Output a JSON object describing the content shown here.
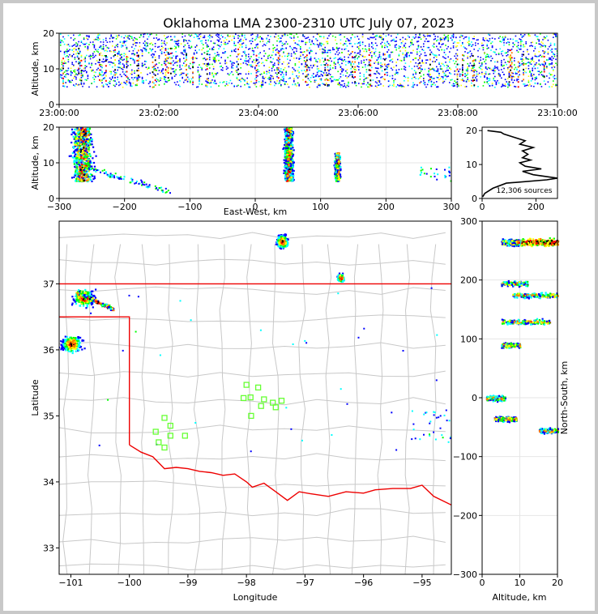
{
  "chart_data": [
    {
      "type": "heatmap",
      "panel": "time-altitude",
      "title": "Oklahoma LMA 2300-2310 UTC July 07, 2023",
      "xlabel": "",
      "ylabel": "Altitude, km",
      "x_ticks": [
        "23:00:00",
        "23:02:00",
        "23:04:00",
        "23:06:00",
        "23:08:00",
        "23:10:00"
      ],
      "y_ticks": [
        0,
        10,
        20
      ],
      "ylim": [
        0,
        20
      ],
      "activity_band_km": [
        5,
        20
      ]
    },
    {
      "type": "heatmap",
      "panel": "east-west-altitude",
      "xlabel": "East-West, km",
      "ylabel": "Altitude, km",
      "xlim": [
        -300,
        300
      ],
      "ylim": [
        0,
        20
      ],
      "x_ticks": [
        -300,
        -200,
        -100,
        0,
        100,
        200,
        300
      ],
      "y_ticks": [
        0,
        10,
        20
      ],
      "clusters": [
        {
          "x": -265,
          "alt_min": 5,
          "alt_max": 20
        },
        {
          "x": 50,
          "alt_min": 5,
          "alt_max": 20
        },
        {
          "x": 125,
          "alt_min": 5,
          "alt_max": 13
        }
      ]
    },
    {
      "type": "line",
      "panel": "altitude-histogram",
      "xlim": [
        0,
        280
      ],
      "ylim": [
        0,
        21
      ],
      "x_ticks": [
        0,
        200
      ],
      "y_ticks": [
        0,
        10,
        20
      ],
      "annotation": "12,306 sources",
      "profile": [
        [
          2,
          0.5
        ],
        [
          10,
          1.5
        ],
        [
          40,
          3
        ],
        [
          90,
          4.5
        ],
        [
          240,
          5.5
        ],
        [
          280,
          6
        ],
        [
          190,
          7
        ],
        [
          150,
          8
        ],
        [
          220,
          8.7
        ],
        [
          160,
          9.5
        ],
        [
          140,
          10.5
        ],
        [
          180,
          11.3
        ],
        [
          150,
          12
        ],
        [
          170,
          13
        ],
        [
          150,
          14
        ],
        [
          190,
          15
        ],
        [
          140,
          16
        ],
        [
          160,
          17
        ],
        [
          120,
          18
        ],
        [
          80,
          19
        ],
        [
          70,
          19.5
        ],
        [
          20,
          20
        ]
      ]
    },
    {
      "type": "heatmap",
      "panel": "plan-view",
      "xlabel": "Longitude",
      "ylabel": "Latitude",
      "xlim": [
        -101.2,
        -94.5
      ],
      "ylim": [
        32.6,
        37.95
      ],
      "x_ticks": [
        -101,
        -100,
        -99,
        -98,
        -97,
        -96,
        -95
      ],
      "y_ticks": [
        33,
        34,
        35,
        36,
        37
      ],
      "clusters": [
        {
          "lon": -97.4,
          "lat": 37.65
        },
        {
          "lon": -96.4,
          "lat": 37.1
        },
        {
          "lon": -100.8,
          "lat": 36.8
        },
        {
          "lon": -101.0,
          "lat": 36.1
        }
      ],
      "stations": [
        {
          "lon": -99.4,
          "lat": 34.97
        },
        {
          "lon": -99.3,
          "lat": 34.85
        },
        {
          "lon": -99.55,
          "lat": 34.76
        },
        {
          "lon": -99.3,
          "lat": 34.7
        },
        {
          "lon": -99.05,
          "lat": 34.7
        },
        {
          "lon": -99.5,
          "lat": 34.6
        },
        {
          "lon": -99.4,
          "lat": 34.52
        },
        {
          "lon": -98.0,
          "lat": 35.47
        },
        {
          "lon": -97.8,
          "lat": 35.43
        },
        {
          "lon": -98.05,
          "lat": 35.27
        },
        {
          "lon": -97.93,
          "lat": 35.28
        },
        {
          "lon": -97.7,
          "lat": 35.25
        },
        {
          "lon": -97.55,
          "lat": 35.2
        },
        {
          "lon": -97.4,
          "lat": 35.23
        },
        {
          "lon": -97.75,
          "lat": 35.15
        },
        {
          "lon": -97.5,
          "lat": 35.13
        },
        {
          "lon": -97.92,
          "lat": 35.0
        }
      ]
    },
    {
      "type": "heatmap",
      "panel": "altitude-north-south",
      "xlabel": "Altitude, km",
      "ylabel": "North-South, km",
      "xlim": [
        0,
        20
      ],
      "ylim": [
        -300,
        300
      ],
      "x_ticks": [
        0,
        10,
        20
      ],
      "y_ticks": [
        -300,
        -200,
        -100,
        0,
        100,
        200,
        300
      ],
      "clusters": [
        {
          "y": 265,
          "alt_min": 5,
          "alt_max": 20
        },
        {
          "y": 195,
          "alt_min": 5,
          "alt_max": 12
        },
        {
          "y": 175,
          "alt_min": 8,
          "alt_max": 20
        },
        {
          "y": 130,
          "alt_min": 5,
          "alt_max": 18
        },
        {
          "y": 90,
          "alt_min": 5,
          "alt_max": 10
        },
        {
          "y": 0,
          "alt_min": 1,
          "alt_max": 6
        },
        {
          "y": -35,
          "alt_min": 3,
          "alt_max": 9
        },
        {
          "y": -55,
          "alt_min": 15,
          "alt_max": 20
        }
      ]
    }
  ],
  "colors": {
    "source_scale": [
      "#0000ff",
      "#00ffff",
      "#00ff00",
      "#ffff00",
      "#ff8000",
      "#ff0000",
      "#000000"
    ],
    "state_border": "#ee0000",
    "county_lines": "#c8c8c8",
    "station": "#66ff33",
    "frame_bg": "#ffffff",
    "outer_bg": "#c8c8c8"
  }
}
